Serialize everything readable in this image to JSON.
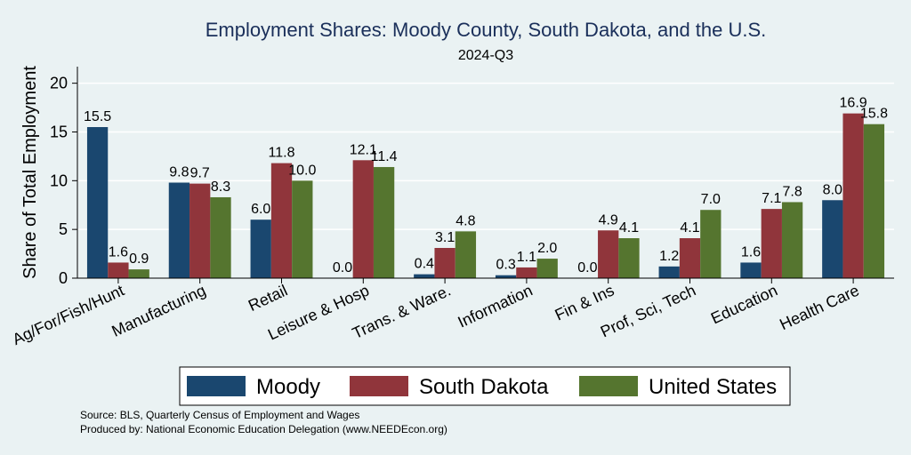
{
  "chart_data": {
    "type": "bar",
    "title": "Employment Shares: Moody County, South Dakota, and the U.S.",
    "subtitle": "2024-Q3",
    "xlabel": "",
    "ylabel": "Share of Total Employment",
    "ylim": [
      0,
      21.7
    ],
    "yticks": [
      0,
      5,
      10,
      15,
      20
    ],
    "grid": true,
    "legend_position": "bottom",
    "categories": [
      "Ag/For/Fish/Hunt",
      "Manufacturing",
      "Retail",
      "Leisure & Hosp",
      "Trans. & Ware.",
      "Information",
      "Fin & Ins",
      "Prof, Sci, Tech",
      "Education",
      "Health Care"
    ],
    "series": [
      {
        "name": "Moody",
        "color": "#1a476f",
        "values": [
          15.5,
          9.8,
          6.0,
          0.0,
          0.4,
          0.3,
          0.0,
          1.2,
          1.6,
          8.0
        ],
        "labels": [
          "15.5",
          "9.8",
          "6.0",
          "0.0",
          "0.4",
          "0.3",
          "0.0",
          "1.2",
          "1.6",
          "8.0"
        ]
      },
      {
        "name": "South Dakota",
        "color": "#90353b",
        "values": [
          1.6,
          9.7,
          11.8,
          12.1,
          3.1,
          1.1,
          4.9,
          4.1,
          7.1,
          16.9
        ],
        "labels": [
          "1.6",
          "9.7",
          "11.8",
          "12.1",
          "3.1",
          "1.1",
          "4.9",
          "4.1",
          "7.1",
          "16.9"
        ]
      },
      {
        "name": "United States",
        "color": "#55752f",
        "values": [
          0.9,
          8.3,
          10.0,
          11.4,
          4.8,
          2.0,
          4.1,
          7.0,
          7.8,
          15.8
        ],
        "labels": [
          "0.9",
          "8.3",
          "10.0",
          "11.4",
          "4.8",
          "2.0",
          "4.1",
          "7.0",
          "7.8",
          "15.8"
        ]
      }
    ],
    "notes": [
      "Source: BLS, Quarterly Census of Employment and Wages",
      "Produced by: National Economic Education Delegation (www.NEEDEcon.org)"
    ]
  }
}
